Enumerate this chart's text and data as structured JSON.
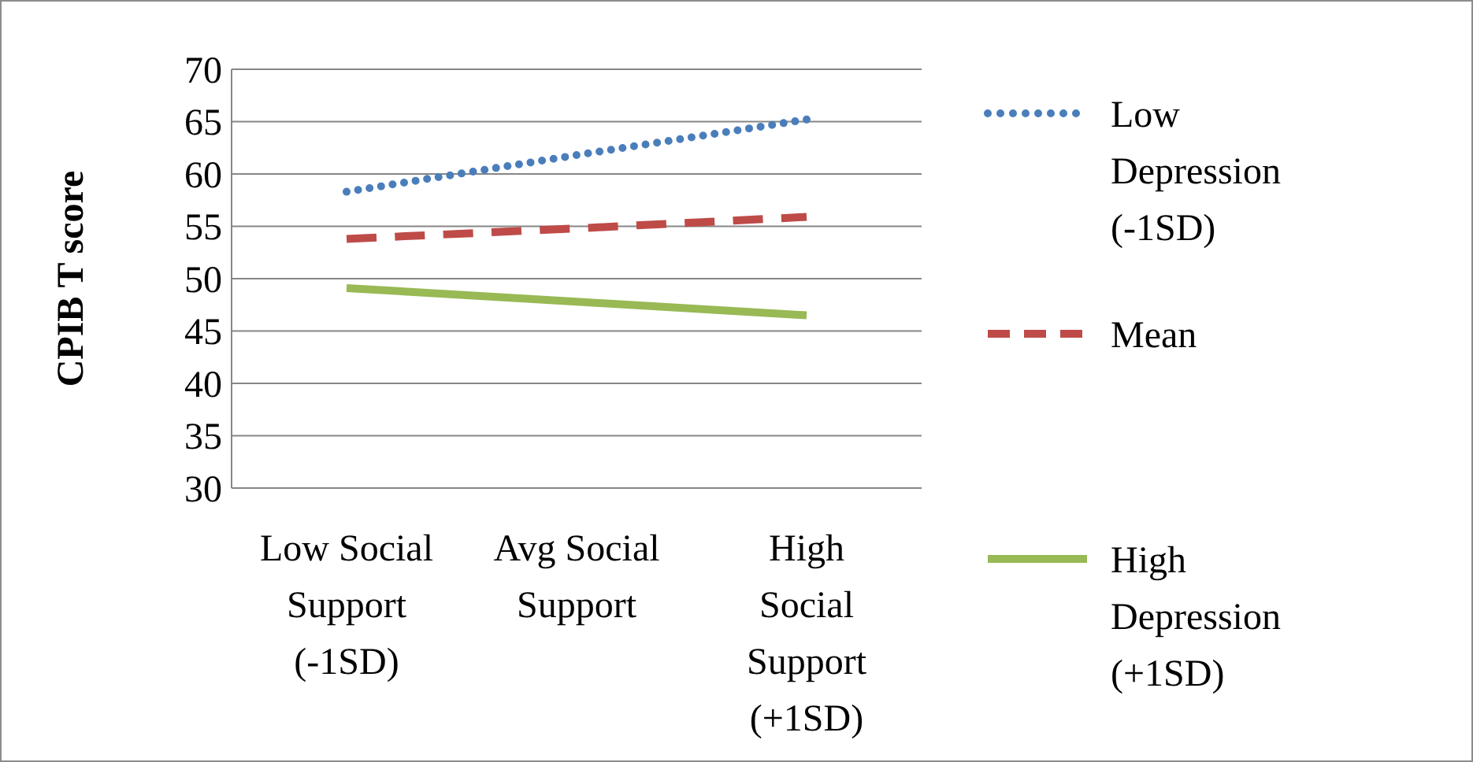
{
  "chart_data": {
    "type": "line",
    "ylabel": "CPIB T score",
    "categories": [
      "Low Social Support (-1SD)",
      "Avg Social Support",
      "High Social Support (+1SD)"
    ],
    "ylim": [
      30,
      70
    ],
    "yticks": [
      30,
      35,
      40,
      45,
      50,
      55,
      60,
      65,
      70
    ],
    "grid": "y",
    "legend": "right",
    "marker": "none",
    "series": [
      {
        "name": "Low Depression (-1SD)",
        "color": "#4a7ebb",
        "line_style": "dotted",
        "values": [
          58.3,
          61.8,
          65.2
        ]
      },
      {
        "name": "Mean",
        "color": "#be4b48",
        "line_style": "dashed",
        "values": [
          53.8,
          54.8,
          55.9
        ]
      },
      {
        "name": "High Depression (+1SD)",
        "color": "#98b954",
        "line_style": "solid",
        "values": [
          49.1,
          47.8,
          46.5
        ]
      }
    ]
  }
}
